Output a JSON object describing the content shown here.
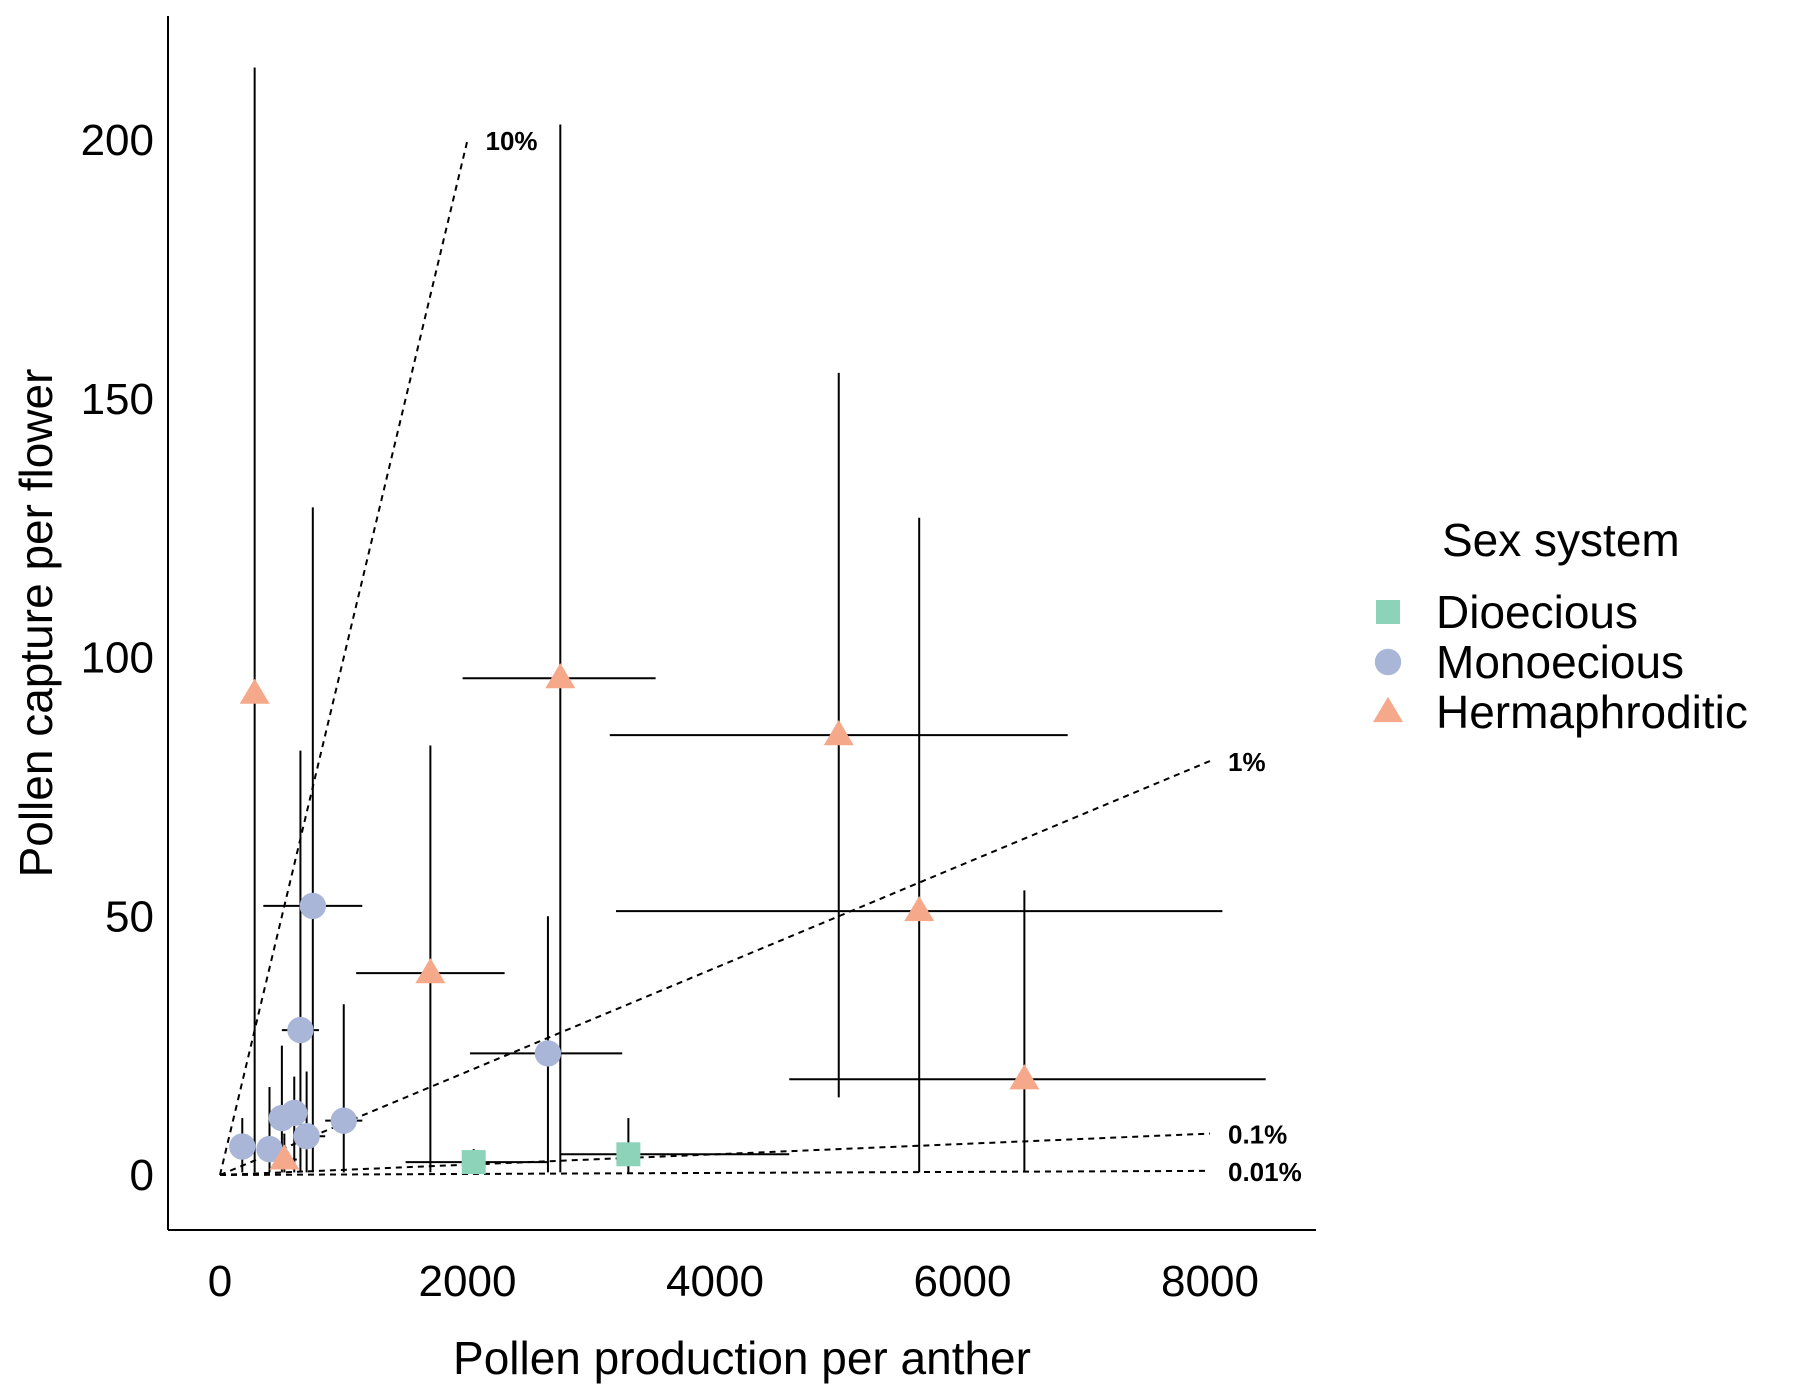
{
  "chart_data": {
    "type": "scatter",
    "title": "",
    "xlabel": "Pollen production per anther",
    "ylabel": "Pollen capture per flower",
    "xlim": [
      -200,
      8800
    ],
    "ylim": [
      -10,
      225
    ],
    "xticks": [
      0,
      2000,
      4000,
      6000,
      8000
    ],
    "yticks": [
      0,
      50,
      100,
      150,
      200
    ],
    "grid": false,
    "legend": {
      "title": "Sex system",
      "position": "right",
      "entries": [
        {
          "name": "Dioecious",
          "color": "#8dd3b9",
          "shape": "square"
        },
        {
          "name": "Monoecious",
          "color": "#a9b6d8",
          "shape": "circle"
        },
        {
          "name": "Hermaphroditic",
          "color": "#f6a88a",
          "shape": "triangle"
        }
      ]
    },
    "reference_lines": [
      {
        "label": "10%",
        "x_end": 2000,
        "y_end": 200
      },
      {
        "label": "1%",
        "x_end": 8000,
        "y_end": 80
      },
      {
        "label": "0.1%",
        "x_end": 8000,
        "y_end": 8
      },
      {
        "label": "0.01%",
        "x_end": 8000,
        "y_end": 0.8
      }
    ],
    "series": [
      {
        "name": "Dioecious",
        "points": [
          {
            "x": 2050,
            "y": 2.5,
            "xerr": [
              1500,
              2650
            ],
            "yerr": [
              0.5,
              5
            ]
          },
          {
            "x": 3300,
            "y": 4,
            "xerr": [
              2750,
              4600
            ],
            "yerr": [
              0.5,
              11
            ]
          }
        ]
      },
      {
        "name": "Monoecious",
        "points": [
          {
            "x": 180,
            "y": 5.5,
            "xerr": [
              150,
              210
            ],
            "yerr": [
              0.5,
              11
            ]
          },
          {
            "x": 400,
            "y": 5,
            "xerr": [
              350,
              470
            ],
            "yerr": [
              0.5,
              17
            ]
          },
          {
            "x": 500,
            "y": 11,
            "xerr": [
              400,
              600
            ],
            "yerr": [
              0.5,
              25
            ]
          },
          {
            "x": 600,
            "y": 12,
            "xerr": [
              500,
              700
            ],
            "yerr": [
              0.5,
              19
            ]
          },
          {
            "x": 650,
            "y": 28,
            "xerr": [
              500,
              800
            ],
            "yerr": [
              0.5,
              82
            ]
          },
          {
            "x": 700,
            "y": 7.5,
            "xerr": [
              600,
              850
            ],
            "yerr": [
              0.5,
              20
            ]
          },
          {
            "x": 750,
            "y": 52,
            "xerr": [
              350,
              1150
            ],
            "yerr": [
              0.5,
              129
            ]
          },
          {
            "x": 1000,
            "y": 10.5,
            "xerr": [
              850,
              1150
            ],
            "yerr": [
              0.5,
              33
            ]
          },
          {
            "x": 2650,
            "y": 23.5,
            "xerr": [
              2020,
              3250
            ],
            "yerr": [
              0.5,
              50
            ]
          }
        ]
      },
      {
        "name": "Hermaphroditic",
        "points": [
          {
            "x": 280,
            "y": 93,
            "xerr": [
              270,
              290
            ],
            "yerr": [
              0.5,
              214
            ]
          },
          {
            "x": 520,
            "y": 3,
            "xerr": [
              420,
              620
            ],
            "yerr": [
              0.5,
              8
            ]
          },
          {
            "x": 1700,
            "y": 39,
            "xerr": [
              1100,
              2300
            ],
            "yerr": [
              0.5,
              83
            ]
          },
          {
            "x": 2750,
            "y": 96,
            "xerr": [
              1960,
              3520
            ],
            "yerr": [
              0.5,
              203
            ]
          },
          {
            "x": 5000,
            "y": 85,
            "xerr": [
              3150,
              6850
            ],
            "yerr": [
              15,
              155
            ]
          },
          {
            "x": 5650,
            "y": 51,
            "xerr": [
              3200,
              8100
            ],
            "yerr": [
              0.5,
              127
            ]
          },
          {
            "x": 6500,
            "y": 18.5,
            "xerr": [
              4600,
              8450
            ],
            "yerr": [
              0.5,
              55
            ]
          }
        ]
      }
    ]
  }
}
